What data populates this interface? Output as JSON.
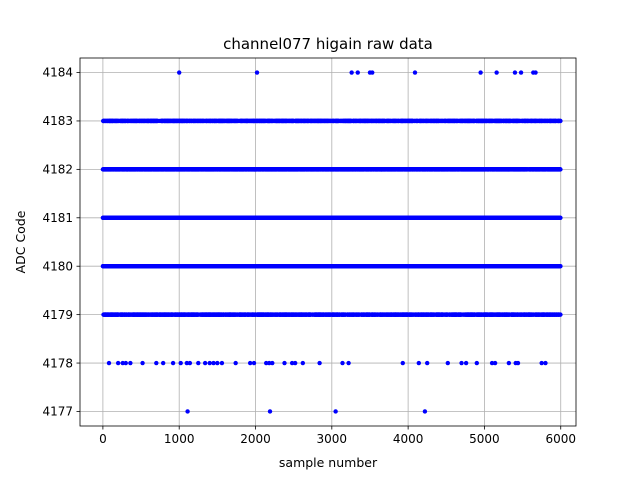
{
  "chart_data": {
    "type": "scatter",
    "title": "channel077 higain raw data",
    "xlabel": "sample number",
    "ylabel": "ADC Code",
    "xlim": [
      -300,
      6200
    ],
    "ylim": [
      4176.7,
      4184.3
    ],
    "xticks": [
      0,
      1000,
      2000,
      3000,
      4000,
      5000,
      6000
    ],
    "yticks": [
      4177,
      4178,
      4179,
      4180,
      4181,
      4182,
      4183,
      4184
    ],
    "grid": true,
    "marker_color": "#0000ff",
    "n_samples": 6000,
    "series": [
      {
        "dense_levels": [
          4179,
          4180,
          4181,
          4182,
          4183
        ],
        "sparse_points": [
          {
            "y": 4184,
            "x": [
              1000,
              2020,
              3260,
              3340,
              3500,
              3530,
              4090,
              4950,
              5160,
              5400,
              5480,
              5640,
              5670
            ]
          },
          {
            "y": 4177,
            "x": [
              1110,
              2190,
              3050,
              4220
            ]
          },
          {
            "y": 4178,
            "x": [
              80,
              200,
              260,
              300,
              360,
              520,
              700,
              790,
              920,
              1020,
              1100,
              1140,
              1250,
              1340,
              1400,
              1450,
              1500,
              1560,
              1740,
              1930,
              1980,
              2140,
              2180,
              2220,
              2380,
              2480,
              2520,
              2620,
              2840,
              3140,
              3220,
              3930,
              4140,
              4250,
              4520,
              4700,
              4760,
              4900,
              5100,
              5140,
              5320,
              5410,
              5440,
              5750,
              5800
            ]
          }
        ]
      }
    ]
  }
}
